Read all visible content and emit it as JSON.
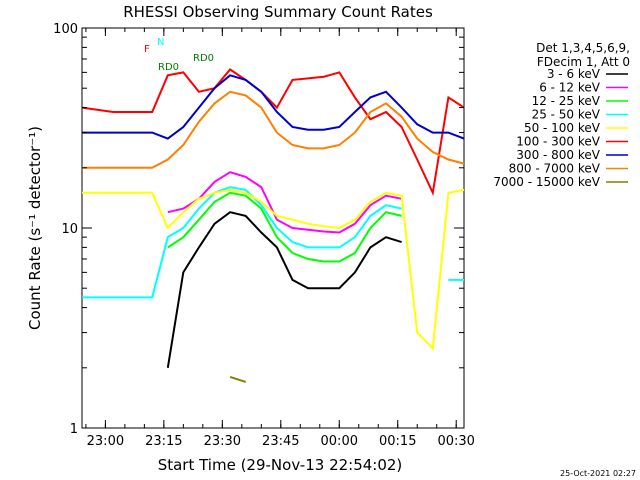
{
  "chart_data": {
    "type": "line",
    "title": "RHESSI Observing Summary Count Rates",
    "xlabel": "Start Time (29-Nov-13 22:54:02)",
    "ylabel": "Count Rate (s⁻¹ detector⁻¹)",
    "x_unit": "minutes after 22:54:02",
    "xlim": [
      0,
      98
    ],
    "ylim": [
      1,
      100
    ],
    "ylog": true,
    "x_ticks": [
      {
        "x": 6,
        "label": "23:00"
      },
      {
        "x": 21,
        "label": "23:15"
      },
      {
        "x": 36,
        "label": "23:30"
      },
      {
        "x": 51,
        "label": "23:45"
      },
      {
        "x": 66,
        "label": "00:00"
      },
      {
        "x": 81,
        "label": "00:15"
      },
      {
        "x": 96,
        "label": "00:30"
      }
    ],
    "y_ticks": [
      {
        "y": 1,
        "label": "1"
      },
      {
        "y": 10,
        "label": "10"
      },
      {
        "y": 100,
        "label": "100"
      }
    ],
    "legend_header": [
      "Det 1,3,4,5,6,9,",
      "FDecim 1, Att 0"
    ],
    "legend_position": "top-right",
    "x": [
      0,
      8,
      16,
      18,
      22,
      26,
      30,
      34,
      38,
      42,
      46,
      50,
      54,
      58,
      62,
      66,
      70,
      74,
      78,
      82,
      86,
      90,
      94,
      98
    ],
    "series": [
      {
        "name": "3 - 6 keV",
        "color": "#000000",
        "values": [
          null,
          null,
          null,
          null,
          2.0,
          6.0,
          8.0,
          10.5,
          12.0,
          11.5,
          9.5,
          8.0,
          5.5,
          5.0,
          5.0,
          5.0,
          6.0,
          8.0,
          9.0,
          8.5,
          null,
          null,
          null,
          null
        ]
      },
      {
        "name": "6 - 12 keV",
        "color": "#ff00ff",
        "values": [
          null,
          null,
          null,
          null,
          12.0,
          12.5,
          14.0,
          17.0,
          19.0,
          18.0,
          16.0,
          11.0,
          10.0,
          9.8,
          9.6,
          9.5,
          10.5,
          13.0,
          14.5,
          14.0,
          null,
          null,
          null,
          null
        ]
      },
      {
        "name": "12 - 25 keV",
        "color": "#00ff00",
        "values": [
          null,
          null,
          null,
          null,
          8.0,
          9.0,
          11.0,
          13.5,
          15.0,
          14.5,
          12.5,
          9.0,
          7.5,
          7.0,
          6.8,
          6.8,
          7.5,
          10.0,
          12.0,
          11.5,
          null,
          null,
          null,
          null
        ]
      },
      {
        "name": "25 - 50 keV",
        "color": "#00ffff",
        "values": [
          4.5,
          4.5,
          4.5,
          4.5,
          9.0,
          10.0,
          12.5,
          15.0,
          16.0,
          15.5,
          13.0,
          10.0,
          8.5,
          8.0,
          8.0,
          8.0,
          9.0,
          11.5,
          13.0,
          12.5,
          null,
          null,
          5.5,
          5.5
        ]
      },
      {
        "name": "50 - 100 keV",
        "color": "#ffff00",
        "values": [
          15.0,
          15.0,
          15.0,
          15.0,
          10.0,
          12.0,
          14.0,
          15.0,
          15.5,
          15.0,
          13.5,
          11.5,
          11.0,
          10.5,
          10.2,
          10.0,
          11.0,
          13.5,
          15.0,
          14.5,
          3.0,
          2.5,
          15.0,
          15.5
        ]
      },
      {
        "name": "100 - 300 keV",
        "color": "#ff0000",
        "values": [
          40.0,
          38.0,
          38.0,
          38.0,
          58.0,
          60.0,
          48.0,
          50.0,
          62.0,
          55.0,
          48.0,
          40.0,
          55.0,
          56.0,
          57.0,
          60.0,
          45.0,
          35.0,
          38.0,
          32.0,
          22.0,
          15.0,
          45.0,
          40.0
        ]
      },
      {
        "name": "300 - 800 keV",
        "color": "#0000cc",
        "values": [
          30.0,
          30.0,
          30.0,
          30.0,
          28.0,
          32.0,
          40.0,
          50.0,
          58.0,
          55.0,
          48.0,
          38.0,
          32.0,
          31.0,
          31.0,
          32.0,
          38.0,
          45.0,
          48.0,
          40.0,
          33.0,
          30.0,
          30.0,
          28.0
        ]
      },
      {
        "name": "800 - 7000 keV",
        "color": "#ff8000",
        "values": [
          20.0,
          20.0,
          20.0,
          20.0,
          22.0,
          26.0,
          34.0,
          42.0,
          48.0,
          46.0,
          40.0,
          30.0,
          26.0,
          25.0,
          25.0,
          26.0,
          30.0,
          38.0,
          42.0,
          36.0,
          28.0,
          24.0,
          22.0,
          21.0
        ]
      },
      {
        "name": "7000 - 15000 keV",
        "color": "#808000",
        "values": [
          null,
          null,
          null,
          null,
          null,
          null,
          null,
          null,
          1.8,
          1.7,
          null,
          null,
          null,
          null,
          null,
          null,
          null,
          null,
          null,
          null,
          null,
          null,
          null,
          null
        ]
      }
    ],
    "annotations": [
      {
        "label": "N",
        "color": "#00ffff"
      },
      {
        "label": "F",
        "color": "#ff0000"
      },
      {
        "label": "RD0",
        "color": "#008000"
      },
      {
        "label": "RD0",
        "color": "#008000"
      }
    ],
    "timestamp": "25-Oct-2021 02:27"
  }
}
